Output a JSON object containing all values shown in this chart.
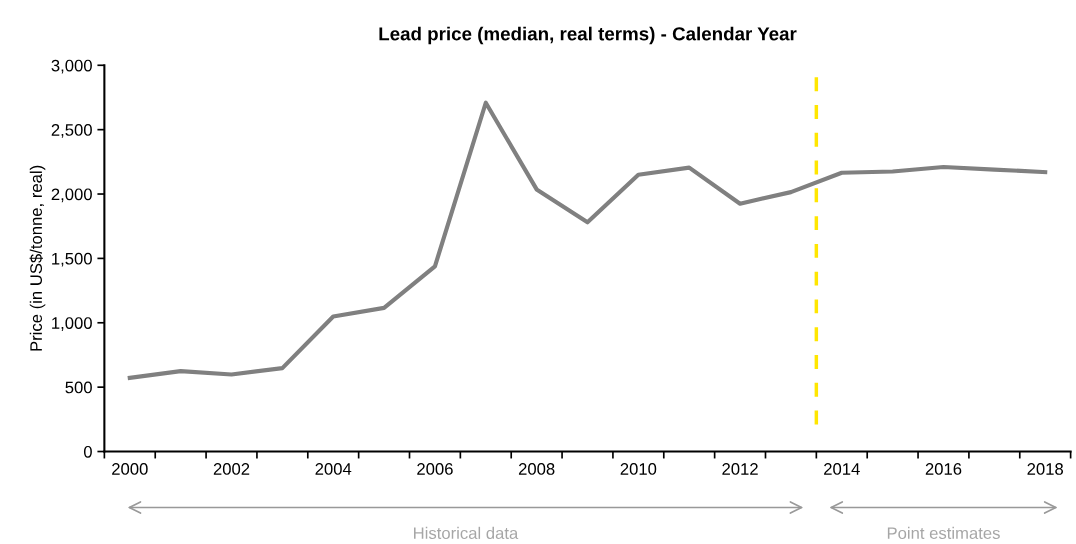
{
  "chart_data": {
    "type": "line",
    "title": "Lead price (median, real terms) - Calendar Year",
    "ylabel": "Price (in US$/tonne, real)",
    "x": [
      2000,
      2001,
      2002,
      2003,
      2004,
      2005,
      2006,
      2007,
      2008,
      2009,
      2010,
      2011,
      2012,
      2013,
      2014,
      2015,
      2016,
      2017,
      2018
    ],
    "series": [
      {
        "color": "#808080",
        "values": [
          572,
          624,
          598,
          648,
          1049,
          1116,
          1438,
          2709,
          2036,
          1780,
          2150,
          2205,
          1925,
          2015,
          2165,
          2175,
          2210,
          2190,
          2170
        ]
      }
    ],
    "xlim": [
      1999.5,
      2018.5
    ],
    "xticks": [
      2000,
      2002,
      2004,
      2006,
      2008,
      2010,
      2012,
      2014,
      2016,
      2018
    ],
    "ylim": [
      0,
      3000
    ],
    "yticks": [
      0,
      {
        "value": 500,
        "label": "500"
      },
      {
        "value": 1000,
        "label": "1,000"
      },
      {
        "value": 1500,
        "label": "1,500"
      },
      {
        "value": 2000,
        "label": "2,000"
      },
      {
        "value": 2500,
        "label": "2,500"
      },
      {
        "value": 3000,
        "label": "3,000"
      }
    ],
    "ref_lines": [
      {
        "axis": "x",
        "value": 2013.5,
        "color": "#ffe600",
        "line_style": "dashed"
      }
    ],
    "annotations": [
      "Historical data",
      "Point estimates"
    ],
    "grid": false,
    "marker": "none",
    "line_style": "solid"
  }
}
